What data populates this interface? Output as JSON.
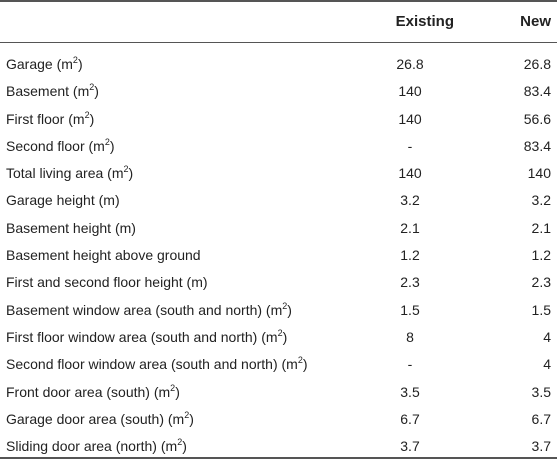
{
  "columns": {
    "label": "",
    "existing": "Existing",
    "new": "New"
  },
  "rows": [
    {
      "label": "Garage (m",
      "unit_sup": "2",
      "suffix": ")",
      "existing": "26.8",
      "new": "26.8"
    },
    {
      "label": "Basement (m",
      "unit_sup": "2",
      "suffix": ")",
      "existing": "140",
      "new": "83.4"
    },
    {
      "label": "First floor (m",
      "unit_sup": "2",
      "suffix": ")",
      "existing": "140",
      "new": "56.6"
    },
    {
      "label": "Second floor (m",
      "unit_sup": "2",
      "suffix": ")",
      "existing": "-",
      "new": "83.4"
    },
    {
      "label": "Total living area (m",
      "unit_sup": "2",
      "suffix": ")",
      "existing": "140",
      "new": "140"
    },
    {
      "label": "Garage height (m)",
      "unit_sup": "",
      "suffix": "",
      "existing": "3.2",
      "new": "3.2"
    },
    {
      "label": "Basement height (m)",
      "unit_sup": "",
      "suffix": "",
      "existing": "2.1",
      "new": "2.1"
    },
    {
      "label": "Basement height above ground",
      "unit_sup": "",
      "suffix": "",
      "existing": "1.2",
      "new": "1.2"
    },
    {
      "label": "First and second floor height (m)",
      "unit_sup": "",
      "suffix": "",
      "existing": "2.3",
      "new": "2.3"
    },
    {
      "label": "Basement window area (south and north) (m",
      "unit_sup": "2",
      "suffix": ")",
      "existing": "1.5",
      "new": "1.5"
    },
    {
      "label": "First floor window area (south and north) (m",
      "unit_sup": "2",
      "suffix": ")",
      "existing": "8",
      "new": "4"
    },
    {
      "label": "Second floor window area (south and north) (m",
      "unit_sup": "2",
      "suffix": ")",
      "existing": "-",
      "new": "4"
    },
    {
      "label": "Front door area (south) (m",
      "unit_sup": "2",
      "suffix": ")",
      "existing": "3.5",
      "new": "3.5"
    },
    {
      "label": "Garage door area (south) (m",
      "unit_sup": "2",
      "suffix": ")",
      "existing": "6.7",
      "new": "6.7"
    },
    {
      "label": "Sliding door area (north) (m",
      "unit_sup": "2",
      "suffix": ")",
      "existing": "3.7",
      "new": "3.7"
    }
  ]
}
